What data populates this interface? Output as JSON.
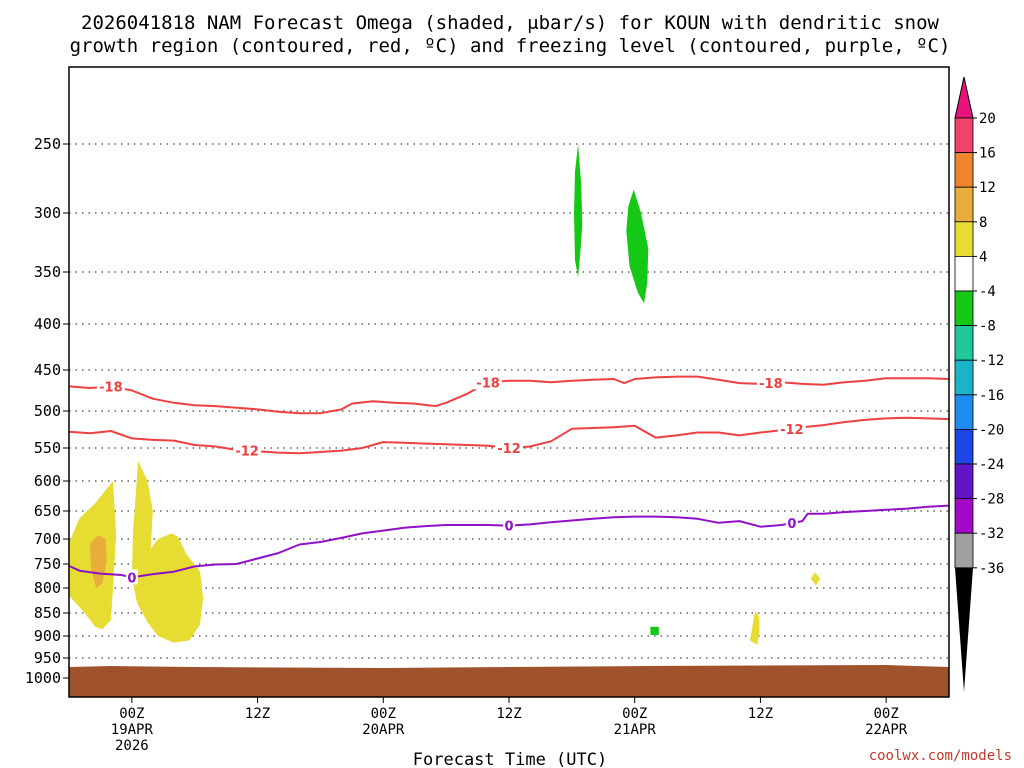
{
  "chart_data": {
    "type": "heatmap",
    "title_line1": "2026041818 NAM Forecast Omega (shaded, μbar/s) for KOUN with dendritic snow",
    "title_line2": "growth region (contoured, red, ºC) and freezing level (contoured, purple, ºC)",
    "xlabel": "Forecast Time (UTC)",
    "credit": "coolwx.com/models",
    "y_axis": {
      "scale": "pressure (hPa), inverted",
      "ylim": [
        1000,
        200
      ],
      "ticks": [
        250,
        300,
        350,
        400,
        450,
        500,
        550,
        600,
        650,
        700,
        750,
        800,
        850,
        900,
        950,
        1000
      ],
      "grid": "dotted"
    },
    "x_axis": {
      "xlim": [
        "2026-04-18T18Z",
        "2026-04-22T06Z"
      ],
      "ticks": [
        {
          "hour": 6,
          "lines": [
            "00Z",
            "19APR",
            "2026"
          ]
        },
        {
          "hour": 18,
          "lines": [
            "12Z"
          ]
        },
        {
          "hour": 30,
          "lines": [
            "00Z",
            "20APR"
          ]
        },
        {
          "hour": 42,
          "lines": [
            "12Z"
          ]
        },
        {
          "hour": 54,
          "lines": [
            "00Z",
            "21APR"
          ]
        },
        {
          "hour": 66,
          "lines": [
            "12Z"
          ]
        },
        {
          "hour": 78,
          "lines": [
            "00Z",
            "22APR"
          ]
        }
      ]
    },
    "colorbar": {
      "ticks": [
        "20",
        "16",
        "12",
        "8",
        "4",
        "-4",
        "-8",
        "-12",
        "-16",
        "-20",
        "-24",
        "-28",
        "-32",
        "-36"
      ],
      "colors": [
        "#f2416b",
        "#f0842c",
        "#e8ae3c",
        "#e6dc32",
        "#ffffff",
        "#16c816",
        "#1ec898",
        "#1ab4c8",
        "#1c8cf0",
        "#1c46e6",
        "#6414c8",
        "#a00ac8",
        "#a0a0a0"
      ],
      "top_arrow_color": "#e6147a",
      "bottom_arrow_color": "#000000"
    },
    "series": [
      {
        "name": "-18",
        "color": "#ee4040",
        "points": [
          [
            0,
            470
          ],
          [
            2,
            472
          ],
          [
            4,
            470
          ],
          [
            6,
            475
          ],
          [
            8,
            485
          ],
          [
            10,
            490
          ],
          [
            12,
            493
          ],
          [
            14,
            494
          ],
          [
            16,
            496
          ],
          [
            18,
            498
          ],
          [
            20,
            501
          ],
          [
            22,
            503
          ],
          [
            24,
            503
          ],
          [
            26,
            498
          ],
          [
            27,
            491
          ],
          [
            29,
            488
          ],
          [
            31,
            490
          ],
          [
            33,
            491
          ],
          [
            35,
            494
          ],
          [
            36,
            490
          ],
          [
            38,
            479
          ],
          [
            40,
            465
          ],
          [
            42,
            463
          ],
          [
            44,
            463
          ],
          [
            46,
            465
          ],
          [
            48,
            463
          ],
          [
            50,
            462
          ],
          [
            52,
            461
          ],
          [
            53,
            466
          ],
          [
            54,
            461
          ],
          [
            56,
            459
          ],
          [
            58,
            458
          ],
          [
            60,
            458
          ],
          [
            62,
            462
          ],
          [
            64,
            466
          ],
          [
            66,
            467
          ],
          [
            68,
            465
          ],
          [
            70,
            467
          ],
          [
            72,
            468
          ],
          [
            74,
            465
          ],
          [
            76,
            463
          ],
          [
            78,
            460
          ],
          [
            80,
            460
          ],
          [
            82,
            460
          ],
          [
            84,
            461
          ]
        ],
        "labels": [
          {
            "hour": 4,
            "text": "-18"
          },
          {
            "hour": 40,
            "text": "-18"
          },
          {
            "hour": 67,
            "text": "-18"
          }
        ]
      },
      {
        "name": "-12",
        "color": "#ee4040",
        "points": [
          [
            0,
            528
          ],
          [
            2,
            530
          ],
          [
            4,
            527
          ],
          [
            6,
            537
          ],
          [
            8,
            539
          ],
          [
            10,
            540
          ],
          [
            12,
            546
          ],
          [
            14,
            548
          ],
          [
            16,
            553
          ],
          [
            18,
            555
          ],
          [
            20,
            557
          ],
          [
            22,
            558
          ],
          [
            24,
            556
          ],
          [
            26,
            554
          ],
          [
            28,
            550
          ],
          [
            30,
            542
          ],
          [
            32,
            543
          ],
          [
            34,
            544
          ],
          [
            36,
            545
          ],
          [
            38,
            546
          ],
          [
            40,
            547
          ],
          [
            42,
            550
          ],
          [
            44,
            548
          ],
          [
            46,
            541
          ],
          [
            48,
            524
          ],
          [
            50,
            523
          ],
          [
            52,
            522
          ],
          [
            54,
            520
          ],
          [
            55,
            528
          ],
          [
            56,
            536
          ],
          [
            58,
            533
          ],
          [
            60,
            529
          ],
          [
            62,
            529
          ],
          [
            64,
            533
          ],
          [
            66,
            529
          ],
          [
            68,
            526
          ],
          [
            70,
            522
          ],
          [
            72,
            519
          ],
          [
            74,
            515
          ],
          [
            76,
            512
          ],
          [
            78,
            510
          ],
          [
            80,
            509
          ],
          [
            82,
            510
          ],
          [
            84,
            511
          ]
        ],
        "labels": [
          {
            "hour": 17,
            "text": "-12"
          },
          {
            "hour": 42,
            "text": "-12"
          },
          {
            "hour": 69,
            "text": "-12"
          }
        ]
      },
      {
        "name": "0",
        "color": "#9010c8",
        "points": [
          [
            0,
            754
          ],
          [
            1,
            764
          ],
          [
            3,
            770
          ],
          [
            5,
            773
          ],
          [
            6,
            778
          ],
          [
            8,
            771
          ],
          [
            10,
            766
          ],
          [
            12,
            755
          ],
          [
            14,
            751
          ],
          [
            16,
            750
          ],
          [
            18,
            739
          ],
          [
            20,
            728
          ],
          [
            22,
            711
          ],
          [
            24,
            706
          ],
          [
            26,
            698
          ],
          [
            28,
            690
          ],
          [
            30,
            685
          ],
          [
            32,
            680
          ],
          [
            34,
            677
          ],
          [
            36,
            675
          ],
          [
            38,
            675
          ],
          [
            40,
            675
          ],
          [
            42,
            676
          ],
          [
            44,
            674
          ],
          [
            46,
            670
          ],
          [
            48,
            667
          ],
          [
            50,
            664
          ],
          [
            52,
            661
          ],
          [
            54,
            660
          ],
          [
            56,
            660
          ],
          [
            58,
            661
          ],
          [
            60,
            664
          ],
          [
            62,
            671
          ],
          [
            64,
            668
          ],
          [
            66,
            678
          ],
          [
            68,
            675
          ],
          [
            70,
            668
          ],
          [
            70.5,
            655
          ],
          [
            72,
            655
          ],
          [
            74,
            652
          ],
          [
            76,
            650
          ],
          [
            78,
            648
          ],
          [
            80,
            646
          ],
          [
            82,
            643
          ],
          [
            84,
            641
          ]
        ],
        "labels": [
          {
            "hour": 6,
            "text": "0"
          },
          {
            "hour": 42,
            "text": "0"
          },
          {
            "hour": 69,
            "text": "0"
          }
        ]
      }
    ],
    "shaded_regions": [
      {
        "name": "omega -4 to -8 upper left",
        "fill": "#16c816",
        "points": [
          [
            48.6,
            250
          ],
          [
            48.9,
            280
          ],
          [
            49.0,
            310
          ],
          [
            48.8,
            335
          ],
          [
            48.6,
            355
          ],
          [
            48.3,
            340
          ],
          [
            48.2,
            300
          ],
          [
            48.3,
            270
          ]
        ]
      },
      {
        "name": "omega -4 to -8 upper right",
        "fill": "#16c816",
        "points": [
          [
            53.9,
            283
          ],
          [
            54.6,
            300
          ],
          [
            55.3,
            330
          ],
          [
            55.2,
            360
          ],
          [
            54.9,
            380
          ],
          [
            54.3,
            370
          ],
          [
            53.5,
            345
          ],
          [
            53.2,
            315
          ],
          [
            53.4,
            295
          ]
        ]
      },
      {
        "name": "omega 4 to 8 left lobe",
        "fill": "#e6dc32",
        "points": [
          [
            0,
            708
          ],
          [
            1,
            663
          ],
          [
            2.5,
            637
          ],
          [
            4.2,
            600
          ],
          [
            4.5,
            690
          ],
          [
            4.2,
            800
          ],
          [
            4.0,
            865
          ],
          [
            3.2,
            885
          ],
          [
            2.5,
            880
          ],
          [
            1.5,
            850
          ],
          [
            0,
            815
          ]
        ]
      },
      {
        "name": "omega 4 to 8 middle lobe",
        "fill": "#e6dc32",
        "points": [
          [
            6.6,
            570
          ],
          [
            7.5,
            600
          ],
          [
            8.0,
            650
          ],
          [
            7.8,
            720
          ],
          [
            8.5,
            700
          ],
          [
            9.8,
            690
          ],
          [
            10.4,
            696
          ],
          [
            11.2,
            730
          ],
          [
            12.5,
            765
          ],
          [
            12.8,
            820
          ],
          [
            12.5,
            875
          ],
          [
            11.5,
            910
          ],
          [
            10,
            915
          ],
          [
            8.5,
            900
          ],
          [
            7.5,
            870
          ],
          [
            6.5,
            830
          ],
          [
            6.0,
            780
          ],
          [
            6.1,
            690
          ]
        ]
      },
      {
        "name": "omega 8 to 12 core",
        "fill": "#e8ae3c",
        "points": [
          [
            2.0,
            710
          ],
          [
            2.8,
            693
          ],
          [
            3.5,
            700
          ],
          [
            3.6,
            745
          ],
          [
            3.2,
            790
          ],
          [
            2.6,
            800
          ],
          [
            2.1,
            760
          ]
        ]
      },
      {
        "name": "omega 4 to 8 small right",
        "fill": "#e6dc32",
        "points": [
          [
            71.2,
            767
          ],
          [
            71.7,
            780
          ],
          [
            71.3,
            795
          ],
          [
            70.8,
            780
          ]
        ]
      },
      {
        "name": "omega 4 to 8 small lower right",
        "fill": "#e6dc32",
        "points": [
          [
            65.5,
            845
          ],
          [
            65.9,
            860
          ],
          [
            65.9,
            890
          ],
          [
            65.7,
            920
          ],
          [
            65.0,
            910
          ],
          [
            65.3,
            870
          ]
        ]
      },
      {
        "name": "omega -4 to -8 small",
        "fill": "#16c816",
        "points": [
          [
            55.5,
            880
          ],
          [
            56.3,
            880
          ],
          [
            56.3,
            898
          ],
          [
            55.5,
            898
          ]
        ]
      }
    ],
    "terrain": {
      "fill": "#a0522d",
      "surface_hPa": 975
    }
  }
}
